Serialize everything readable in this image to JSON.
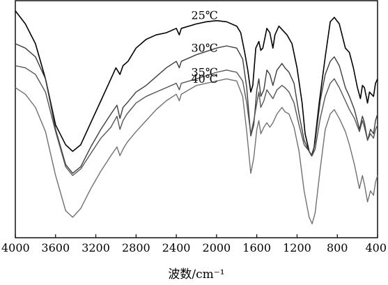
{
  "chart_data": {
    "type": "line",
    "title": "",
    "xlabel": "波数/cm⁻¹",
    "ylabel": "",
    "xlim": [
      4000,
      400
    ],
    "x_reversed": true,
    "y_axis_ticks_shown": false,
    "grid": false,
    "x_ticks": [
      4000,
      3600,
      3200,
      2800,
      2400,
      2000,
      1600,
      1200,
      800,
      400
    ],
    "series": [
      {
        "name": "25℃",
        "color": "#000000",
        "points": [
          [
            4000,
            0.97
          ],
          [
            3900,
            0.91
          ],
          [
            3800,
            0.82
          ],
          [
            3700,
            0.66
          ],
          [
            3600,
            0.45
          ],
          [
            3500,
            0.36
          ],
          [
            3430,
            0.33
          ],
          [
            3350,
            0.36
          ],
          [
            3250,
            0.46
          ],
          [
            3150,
            0.56
          ],
          [
            3050,
            0.66
          ],
          [
            3000,
            0.71
          ],
          [
            2960,
            0.68
          ],
          [
            2930,
            0.72
          ],
          [
            2880,
            0.74
          ],
          [
            2800,
            0.8
          ],
          [
            2700,
            0.84
          ],
          [
            2600,
            0.86
          ],
          [
            2500,
            0.87
          ],
          [
            2400,
            0.89
          ],
          [
            2370,
            0.86
          ],
          [
            2350,
            0.89
          ],
          [
            2200,
            0.91
          ],
          [
            2100,
            0.92
          ],
          [
            2000,
            0.925
          ],
          [
            1900,
            0.92
          ],
          [
            1800,
            0.9
          ],
          [
            1760,
            0.87
          ],
          [
            1720,
            0.78
          ],
          [
            1690,
            0.7
          ],
          [
            1660,
            0.6
          ],
          [
            1640,
            0.63
          ],
          [
            1610,
            0.8
          ],
          [
            1580,
            0.83
          ],
          [
            1560,
            0.79
          ],
          [
            1540,
            0.8
          ],
          [
            1500,
            0.89
          ],
          [
            1470,
            0.87
          ],
          [
            1440,
            0.8
          ],
          [
            1420,
            0.86
          ],
          [
            1380,
            0.9
          ],
          [
            1340,
            0.88
          ],
          [
            1300,
            0.86
          ],
          [
            1250,
            0.82
          ],
          [
            1200,
            0.71
          ],
          [
            1150,
            0.55
          ],
          [
            1120,
            0.41
          ],
          [
            1080,
            0.33
          ],
          [
            1055,
            0.31
          ],
          [
            1030,
            0.35
          ],
          [
            980,
            0.55
          ],
          [
            920,
            0.76
          ],
          [
            870,
            0.92
          ],
          [
            830,
            0.94
          ],
          [
            780,
            0.91
          ],
          [
            720,
            0.8
          ],
          [
            680,
            0.78
          ],
          [
            640,
            0.71
          ],
          [
            600,
            0.62
          ],
          [
            570,
            0.57
          ],
          [
            550,
            0.63
          ],
          [
            530,
            0.62
          ],
          [
            500,
            0.55
          ],
          [
            480,
            0.6
          ],
          [
            440,
            0.58
          ],
          [
            420,
            0.64
          ],
          [
            400,
            0.66
          ]
        ]
      },
      {
        "name": "30℃",
        "color": "#3c3c3c",
        "points": [
          [
            4000,
            0.82
          ],
          [
            3900,
            0.8
          ],
          [
            3800,
            0.76
          ],
          [
            3700,
            0.66
          ],
          [
            3600,
            0.43
          ],
          [
            3500,
            0.27
          ],
          [
            3430,
            0.23
          ],
          [
            3350,
            0.26
          ],
          [
            3250,
            0.35
          ],
          [
            3150,
            0.43
          ],
          [
            3050,
            0.5
          ],
          [
            2990,
            0.54
          ],
          [
            2960,
            0.48
          ],
          [
            2930,
            0.53
          ],
          [
            2890,
            0.55
          ],
          [
            2800,
            0.6
          ],
          [
            2700,
            0.63
          ],
          [
            2600,
            0.67
          ],
          [
            2500,
            0.71
          ],
          [
            2400,
            0.74
          ],
          [
            2370,
            0.71
          ],
          [
            2350,
            0.74
          ],
          [
            2200,
            0.77
          ],
          [
            2000,
            0.8
          ],
          [
            1900,
            0.81
          ],
          [
            1800,
            0.8
          ],
          [
            1740,
            0.75
          ],
          [
            1700,
            0.62
          ],
          [
            1660,
            0.4
          ],
          [
            1630,
            0.45
          ],
          [
            1600,
            0.61
          ],
          [
            1580,
            0.66
          ],
          [
            1560,
            0.58
          ],
          [
            1530,
            0.61
          ],
          [
            1500,
            0.7
          ],
          [
            1470,
            0.68
          ],
          [
            1440,
            0.63
          ],
          [
            1400,
            0.7
          ],
          [
            1350,
            0.73
          ],
          [
            1320,
            0.71
          ],
          [
            1280,
            0.69
          ],
          [
            1230,
            0.64
          ],
          [
            1180,
            0.5
          ],
          [
            1130,
            0.38
          ],
          [
            1080,
            0.33
          ],
          [
            1050,
            0.31
          ],
          [
            1020,
            0.37
          ],
          [
            970,
            0.56
          ],
          [
            920,
            0.68
          ],
          [
            870,
            0.74
          ],
          [
            830,
            0.76
          ],
          [
            780,
            0.72
          ],
          [
            720,
            0.62
          ],
          [
            680,
            0.58
          ],
          [
            630,
            0.52
          ],
          [
            580,
            0.43
          ],
          [
            550,
            0.49
          ],
          [
            530,
            0.46
          ],
          [
            500,
            0.38
          ],
          [
            470,
            0.43
          ],
          [
            440,
            0.41
          ],
          [
            420,
            0.47
          ],
          [
            400,
            0.5
          ]
        ]
      },
      {
        "name": "35℃",
        "color": "#555555",
        "points": [
          [
            4000,
            0.72
          ],
          [
            3900,
            0.71
          ],
          [
            3800,
            0.68
          ],
          [
            3700,
            0.6
          ],
          [
            3600,
            0.42
          ],
          [
            3500,
            0.26
          ],
          [
            3430,
            0.22
          ],
          [
            3350,
            0.25
          ],
          [
            3250,
            0.32
          ],
          [
            3150,
            0.39
          ],
          [
            3050,
            0.44
          ],
          [
            2990,
            0.49
          ],
          [
            2960,
            0.43
          ],
          [
            2930,
            0.47
          ],
          [
            2890,
            0.5
          ],
          [
            2800,
            0.55
          ],
          [
            2700,
            0.58
          ],
          [
            2600,
            0.6
          ],
          [
            2500,
            0.62
          ],
          [
            2400,
            0.64
          ],
          [
            2370,
            0.61
          ],
          [
            2350,
            0.64
          ],
          [
            2200,
            0.66
          ],
          [
            2000,
            0.69
          ],
          [
            1900,
            0.7
          ],
          [
            1800,
            0.69
          ],
          [
            1740,
            0.65
          ],
          [
            1700,
            0.55
          ],
          [
            1660,
            0.41
          ],
          [
            1630,
            0.47
          ],
          [
            1600,
            0.55
          ],
          [
            1580,
            0.6
          ],
          [
            1560,
            0.53
          ],
          [
            1530,
            0.56
          ],
          [
            1500,
            0.61
          ],
          [
            1470,
            0.59
          ],
          [
            1440,
            0.57
          ],
          [
            1400,
            0.61
          ],
          [
            1350,
            0.63
          ],
          [
            1320,
            0.62
          ],
          [
            1280,
            0.6
          ],
          [
            1230,
            0.55
          ],
          [
            1180,
            0.45
          ],
          [
            1130,
            0.36
          ],
          [
            1080,
            0.33
          ],
          [
            1050,
            0.31
          ],
          [
            1020,
            0.34
          ],
          [
            970,
            0.48
          ],
          [
            920,
            0.58
          ],
          [
            870,
            0.64
          ],
          [
            830,
            0.66
          ],
          [
            780,
            0.62
          ],
          [
            720,
            0.56
          ],
          [
            680,
            0.52
          ],
          [
            630,
            0.48
          ],
          [
            580,
            0.42
          ],
          [
            550,
            0.47
          ],
          [
            530,
            0.44
          ],
          [
            500,
            0.38
          ],
          [
            470,
            0.41
          ],
          [
            440,
            0.39
          ],
          [
            420,
            0.43
          ],
          [
            400,
            0.45
          ]
        ]
      },
      {
        "name": "40℃",
        "color": "#707070",
        "points": [
          [
            4000,
            0.62
          ],
          [
            3900,
            0.59
          ],
          [
            3800,
            0.53
          ],
          [
            3700,
            0.42
          ],
          [
            3600,
            0.22
          ],
          [
            3500,
            0.06
          ],
          [
            3430,
            0.03
          ],
          [
            3350,
            0.07
          ],
          [
            3250,
            0.16
          ],
          [
            3150,
            0.24
          ],
          [
            3050,
            0.31
          ],
          [
            2990,
            0.35
          ],
          [
            2960,
            0.31
          ],
          [
            2930,
            0.34
          ],
          [
            2890,
            0.37
          ],
          [
            2800,
            0.42
          ],
          [
            2700,
            0.47
          ],
          [
            2600,
            0.52
          ],
          [
            2500,
            0.56
          ],
          [
            2400,
            0.59
          ],
          [
            2370,
            0.56
          ],
          [
            2350,
            0.59
          ],
          [
            2200,
            0.63
          ],
          [
            2000,
            0.65
          ],
          [
            1900,
            0.66
          ],
          [
            1800,
            0.65
          ],
          [
            1740,
            0.58
          ],
          [
            1700,
            0.42
          ],
          [
            1660,
            0.23
          ],
          [
            1630,
            0.3
          ],
          [
            1600,
            0.43
          ],
          [
            1580,
            0.47
          ],
          [
            1560,
            0.41
          ],
          [
            1530,
            0.44
          ],
          [
            1500,
            0.46
          ],
          [
            1470,
            0.44
          ],
          [
            1440,
            0.46
          ],
          [
            1400,
            0.5
          ],
          [
            1350,
            0.53
          ],
          [
            1320,
            0.51
          ],
          [
            1280,
            0.5
          ],
          [
            1230,
            0.44
          ],
          [
            1180,
            0.33
          ],
          [
            1130,
            0.15
          ],
          [
            1080,
            0.03
          ],
          [
            1050,
            0.0
          ],
          [
            1020,
            0.05
          ],
          [
            970,
            0.25
          ],
          [
            920,
            0.43
          ],
          [
            870,
            0.5
          ],
          [
            830,
            0.52
          ],
          [
            780,
            0.48
          ],
          [
            720,
            0.42
          ],
          [
            680,
            0.36
          ],
          [
            630,
            0.27
          ],
          [
            580,
            0.16
          ],
          [
            550,
            0.22
          ],
          [
            530,
            0.18
          ],
          [
            500,
            0.1
          ],
          [
            470,
            0.15
          ],
          [
            440,
            0.13
          ],
          [
            420,
            0.19
          ],
          [
            400,
            0.22
          ]
        ]
      }
    ]
  }
}
